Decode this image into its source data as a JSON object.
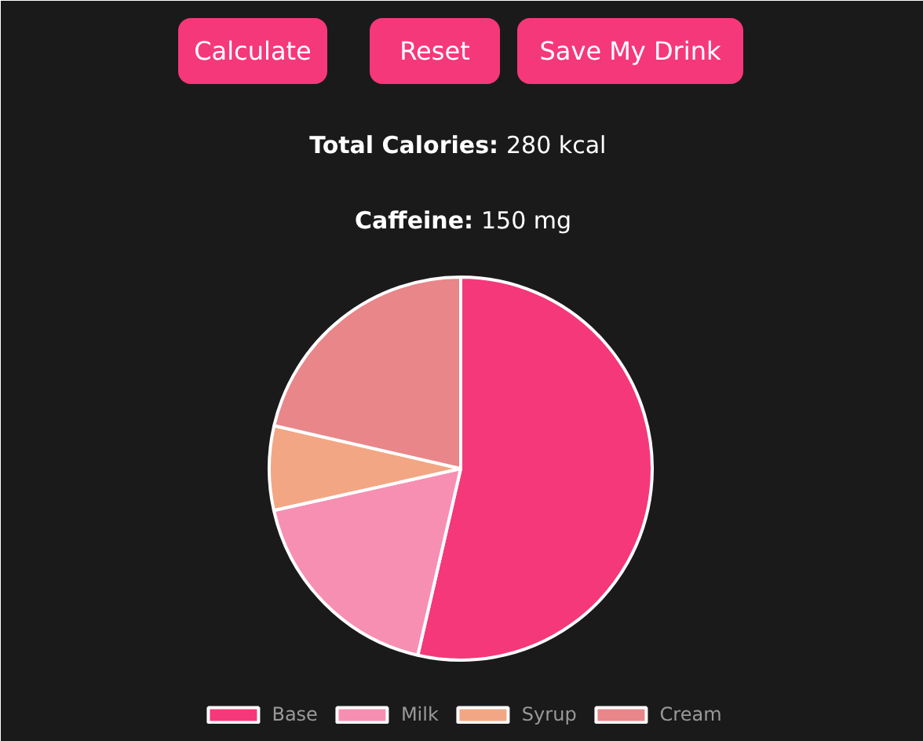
{
  "chart_data": {
    "type": "pie",
    "categories": [
      "Base",
      "Milk",
      "Syrup",
      "Cream"
    ],
    "values": [
      53.6,
      17.9,
      7.1,
      21.4
    ],
    "colors": [
      "#f5387a",
      "#f78fb3",
      "#f3a683",
      "#e8868a"
    ],
    "annotations": [
      "Calculate",
      "Reset",
      "Save My Drink",
      "Total Calories: 280 kcal",
      "Caffeine: 150 mg"
    ],
    "legend": "bottom"
  }
}
